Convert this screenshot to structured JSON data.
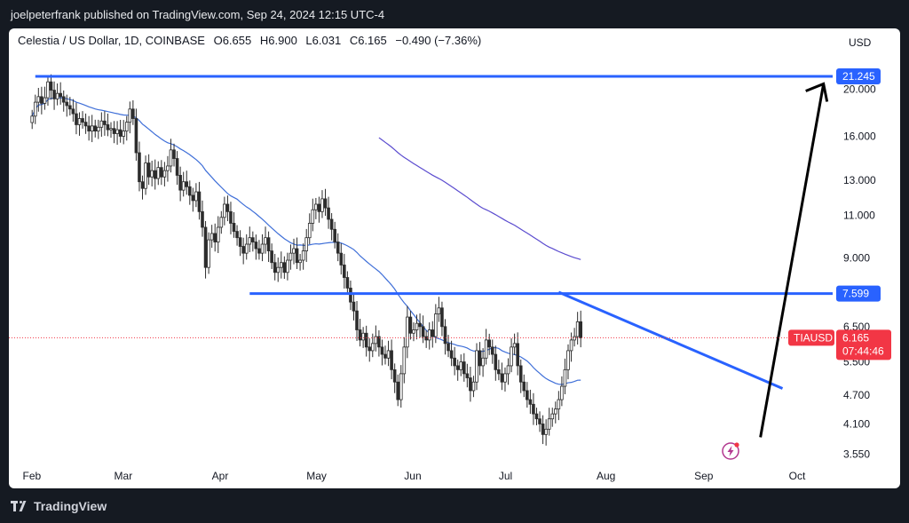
{
  "publisher": "joelpeterfrank published on TradingView.com, Sep 24, 2024 12:15 UTC-4",
  "legend": {
    "symbol": "Celestia / US Dollar, 1D, COINBASE",
    "open": "O6.655",
    "high": "H6.900",
    "low": "L6.031",
    "close": "C6.165",
    "change": "−0.490 (−7.36%)"
  },
  "footer": {
    "brand": "TradingView"
  },
  "colors": {
    "up": "#26a69a",
    "down": "#ef5350",
    "candle_body": "#2c2c2c",
    "line": "#2962ff",
    "ma_short": "#3f6fd8",
    "ma_long": "#5b4ccf",
    "price_tag": "#f23645",
    "arrow": "#000000"
  },
  "chart_data": {
    "type": "candlestick",
    "currency": "USD",
    "y_scale": "log",
    "ylim": [
      3.4,
      23.5
    ],
    "y_ticks": [
      "21.245",
      "20.000",
      "16.000",
      "13.000",
      "11.000",
      "9.000",
      "7.599",
      "6.500",
      "5.500",
      "4.700",
      "4.100",
      "3.550"
    ],
    "x_ticks": [
      "Feb",
      "Mar",
      "Apr",
      "May",
      "Jun",
      "Jul",
      "Aug",
      "Sep",
      "Oct"
    ],
    "x_start": "2024-01-31",
    "levels": [
      {
        "value": 21.245,
        "from": "2024-02-05",
        "to": "2024-10-14"
      },
      {
        "value": 7.599,
        "from": "2024-04-13",
        "to": "2024-10-14"
      }
    ],
    "trendline": {
      "from": {
        "date": "2024-07-20",
        "value": 7.65
      },
      "to": {
        "date": "2024-09-29",
        "value": 4.85
      }
    },
    "projection_arrow": {
      "from": {
        "date": "2024-09-22",
        "value": 3.85
      },
      "to": {
        "date": "2024-10-12",
        "value": 20.5
      }
    },
    "last_price": {
      "symbol": "TIAUSD",
      "value": "6.165",
      "countdown": "07:44:46"
    },
    "closes": [
      17.6,
      18.8,
      19.3,
      18.7,
      19.2,
      20.7,
      19.9,
      19.1,
      19.6,
      19.3,
      18.8,
      18.5,
      18.2,
      17.8,
      16.9,
      17.4,
      17.1,
      16.8,
      16.4,
      16.8,
      16.4,
      16.7,
      17.2,
      16.9,
      16.5,
      16.6,
      16.2,
      16.5,
      16.0,
      16.4,
      17.1,
      18.2,
      17.4,
      14.8,
      12.9,
      12.5,
      14.1,
      13.2,
      13.6,
      13.1,
      13.8,
      13.2,
      13.6,
      13.9,
      15.0,
      14.4,
      13.3,
      12.4,
      12.9,
      12.6,
      12.1,
      11.8,
      12.3,
      11.2,
      10.4,
      8.6,
      9.8,
      10.1,
      9.7,
      10.4,
      10.9,
      11.6,
      11.2,
      10.6,
      10.2,
      9.9,
      9.5,
      9.2,
      9.6,
      9.9,
      9.7,
      9.4,
      9.2,
      9.6,
      9.9,
      9.3,
      8.8,
      8.4,
      8.6,
      8.8,
      8.4,
      8.9,
      9.2,
      9.4,
      8.8,
      8.9,
      9.3,
      9.9,
      10.6,
      11.3,
      11.6,
      11.2,
      11.9,
      11.4,
      10.8,
      10.3,
      9.7,
      9.2,
      8.7,
      8.2,
      7.8,
      7.3,
      7.0,
      6.4,
      6.1,
      6.3,
      5.9,
      5.8,
      6.0,
      6.2,
      5.9,
      5.7,
      5.6,
      5.8,
      5.3,
      5.0,
      4.6,
      5.2,
      5.9,
      6.8,
      6.3,
      6.4,
      6.6,
      6.5,
      6.2,
      6.1,
      6.4,
      6.2,
      6.9,
      7.1,
      6.5,
      6.0,
      5.8,
      5.6,
      5.4,
      5.3,
      5.5,
      5.2,
      5.1,
      4.8,
      5.0,
      5.8,
      5.4,
      5.6,
      6.1,
      5.9,
      5.7,
      5.3,
      5.2,
      5.0,
      5.2,
      5.4,
      5.9,
      6.0,
      5.4,
      5.0,
      4.8,
      4.6,
      4.5,
      4.3,
      4.2,
      4.1,
      3.9,
      4.0,
      4.2,
      4.3,
      4.4,
      4.6,
      4.9,
      5.3,
      5.8,
      6.1,
      6.2,
      6.65,
      6.165
    ]
  }
}
